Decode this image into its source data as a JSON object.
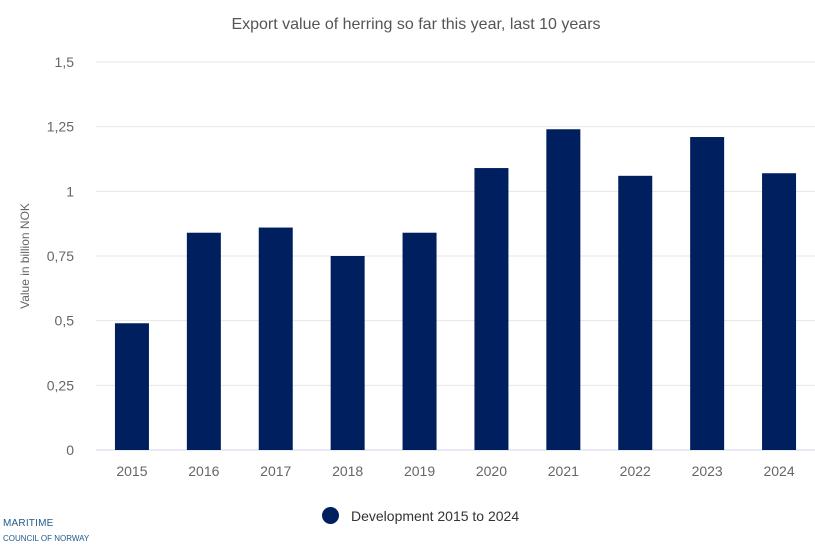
{
  "chart_data": {
    "type": "bar",
    "title": "Export value of herring so far this year, last 10 years",
    "ylabel": "Value in billion NOK",
    "xlabel": "",
    "categories": [
      "2015",
      "2016",
      "2017",
      "2018",
      "2019",
      "2020",
      "2021",
      "2022",
      "2023",
      "2024"
    ],
    "series": [
      {
        "name": "Development 2015 to 2024",
        "values": [
          0.49,
          0.84,
          0.86,
          0.75,
          0.84,
          1.09,
          1.24,
          1.06,
          1.21,
          1.07
        ],
        "color": "#001f5f"
      }
    ],
    "ylim": [
      0,
      1.5
    ],
    "yticks": [
      0,
      0.25,
      0.5,
      0.75,
      1,
      1.25,
      1.5
    ],
    "ytick_labels": [
      "0",
      "0,25",
      "0,5",
      "0,75",
      "1",
      "1,25",
      "1,5"
    ],
    "grid": true,
    "legend_position": "bottom-center"
  },
  "branding": {
    "line1": "MARITIME",
    "line2": "COUNCIL OF NORWAY"
  }
}
